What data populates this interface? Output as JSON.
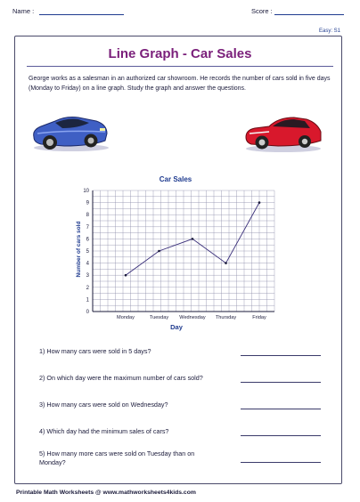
{
  "header": {
    "name_label": "Name :",
    "score_label": "Score :"
  },
  "level": "Easy: S1",
  "title": "Line Graph - Car Sales",
  "intro": "George works as a salesman in an authorized car showroom. He records the number of cars sold in five days (Monday to Friday) on a line graph. Study the graph and answer the questions.",
  "icons": [
    "blue-sports-car-icon",
    "red-sedan-car-icon"
  ],
  "colors": {
    "title": "#7a1f7a",
    "chart_title": "#1f3b8f",
    "line": "#3a2f7a",
    "border": "#4a4a6a"
  },
  "chart_data": {
    "type": "line",
    "title": "Car Sales",
    "xlabel": "Day",
    "ylabel": "Number of cars sold",
    "categories": [
      "Monday",
      "Tuesday",
      "Wednesday",
      "Thursday",
      "Friday"
    ],
    "values": [
      3,
      5,
      6,
      4,
      9
    ],
    "ylim": [
      0,
      10
    ],
    "yticks": [
      "0",
      "1",
      "2",
      "3",
      "4",
      "5",
      "6",
      "7",
      "8",
      "9",
      "10"
    ],
    "grid": true
  },
  "questions": [
    {
      "number": "1)",
      "text": "How many cars were sold in 5 days?"
    },
    {
      "number": "2)",
      "text": "On which day were the maximum number of cars sold?"
    },
    {
      "number": "3)",
      "text": "How many cars were sold on Wednesday?"
    },
    {
      "number": "4)",
      "text": "Which day had the minimum sales of cars?"
    },
    {
      "number": "5)",
      "text": "How many more cars were sold on Tuesday than on Monday?"
    }
  ],
  "footer": "Printable Math Worksheets @ www.mathworksheets4kids.com"
}
